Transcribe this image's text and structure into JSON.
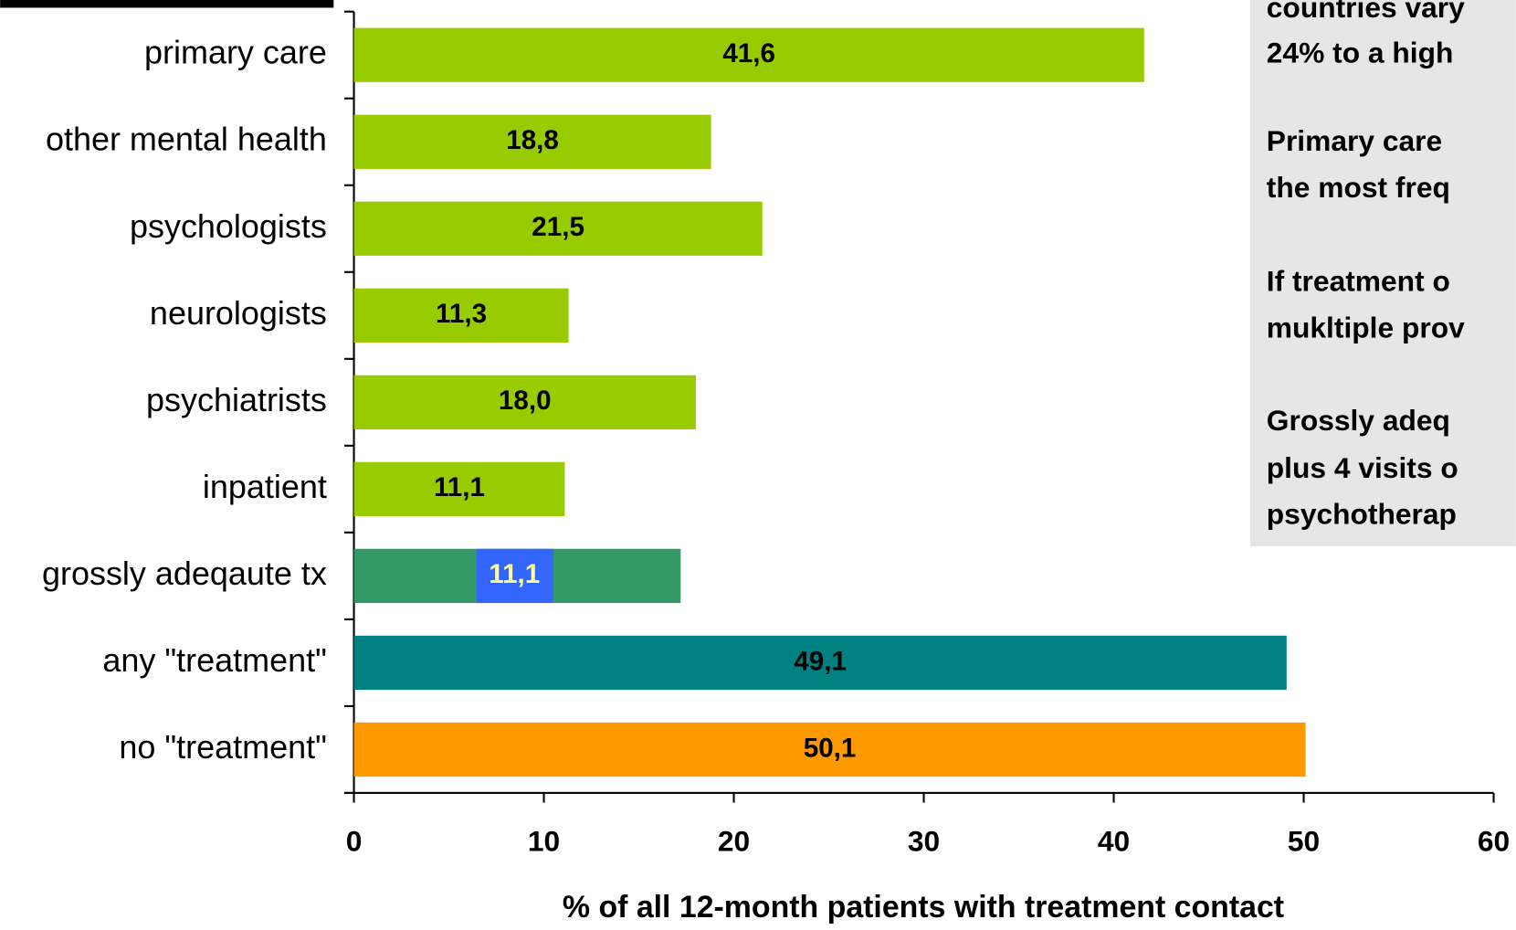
{
  "chart_data": {
    "type": "barh",
    "x_label": "% of all 12-month patients with treatment contact",
    "categories": [
      "primary care",
      "other mental health",
      "psychologists",
      "neurologists",
      "psychiatrists",
      "inpatient",
      "grossly adeqaute tx",
      "any \"treatment\"",
      "no \"treatment\""
    ],
    "values": [
      41.6,
      18.8,
      21.5,
      11.3,
      18.0,
      11.1,
      17.2,
      49.1,
      50.1
    ],
    "value_labels": [
      "41,6",
      "18,8",
      "21,5",
      "11,3",
      "18,0",
      "11,1",
      null,
      "49,1",
      "50,1"
    ],
    "colors": [
      "#99cc00",
      "#99cc00",
      "#99cc00",
      "#99cc00",
      "#99cc00",
      "#99cc00",
      "#339966",
      "#008080",
      "#ff9900"
    ],
    "xlim": [
      0,
      60
    ],
    "xticks": [
      0,
      10,
      20,
      30,
      40,
      50,
      60
    ],
    "annotation": "11,1",
    "note_lines": [
      "countries vary",
      "24% to a high",
      "Primary care",
      "the most freq",
      "If treatment o",
      "mukltiple prov",
      "Grossly adeq",
      "plus 4 visits o",
      "psychotherap"
    ]
  }
}
